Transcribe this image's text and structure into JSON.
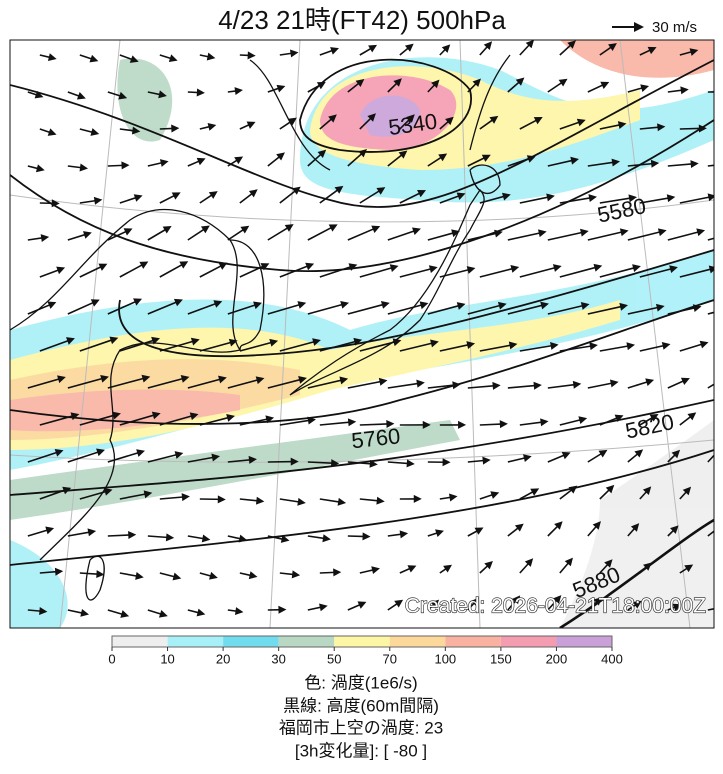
{
  "header": {
    "title": "4/23  21時(FT42)    500hPa"
  },
  "wind_legend": {
    "label": "30 m/s"
  },
  "contour_labels": [
    "5340",
    "5580",
    "5760",
    "5820",
    "5880"
  ],
  "created": "Created: 2026-04-21T18:00:00Z",
  "colorbar": {
    "ticks": [
      "0",
      "10",
      "20",
      "30",
      "50",
      "70",
      "100",
      "150",
      "200",
      "400"
    ],
    "colors": [
      "#eeeeee",
      "#a8f0f8",
      "#72dcef",
      "#b8d8c4",
      "#fdf6a4",
      "#fcd89a",
      "#f9b2a2",
      "#f49cb0",
      "#c9a0d8"
    ]
  },
  "caption": [
    "色: 渦度(1e6/s)",
    "黒線: 高度(60m間隔)",
    "福岡市上空の渦度: 23",
    "[3h変化量]: [ -80 ]"
  ]
}
